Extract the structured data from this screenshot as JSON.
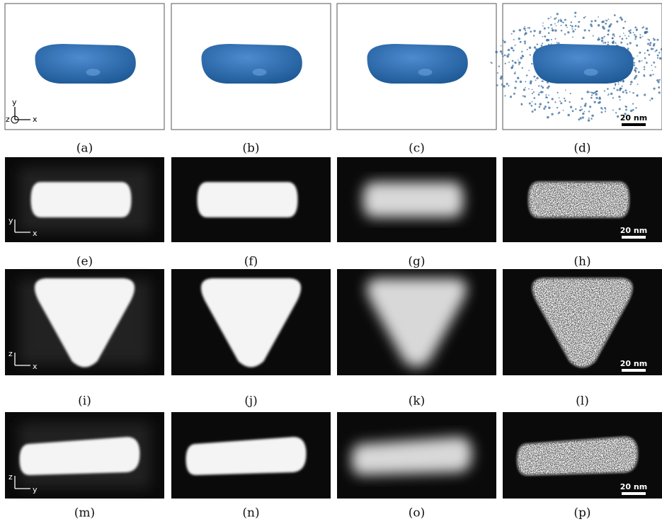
{
  "panels": [
    {
      "label": "(a)",
      "axes": [
        "y",
        "z",
        "x"
      ]
    },
    {
      "label": "(b)"
    },
    {
      "label": "(c)"
    },
    {
      "label": "(d)",
      "scale_bar": "20 nm"
    },
    {
      "label": "(e)",
      "axes": [
        "y",
        "x"
      ]
    },
    {
      "label": "(f)"
    },
    {
      "label": "(g)"
    },
    {
      "label": "(h)",
      "scale_bar": "20 nm"
    },
    {
      "label": "(i)",
      "axes": [
        "z",
        "x"
      ]
    },
    {
      "label": "(j)"
    },
    {
      "label": "(k)"
    },
    {
      "label": "(l)",
      "scale_bar": "20 nm"
    },
    {
      "label": "(m)",
      "axes": [
        "z",
        "y"
      ]
    },
    {
      "label": "(n)"
    },
    {
      "label": "(o)"
    },
    {
      "label": "(p)",
      "scale_bar": "20 nm"
    }
  ]
}
